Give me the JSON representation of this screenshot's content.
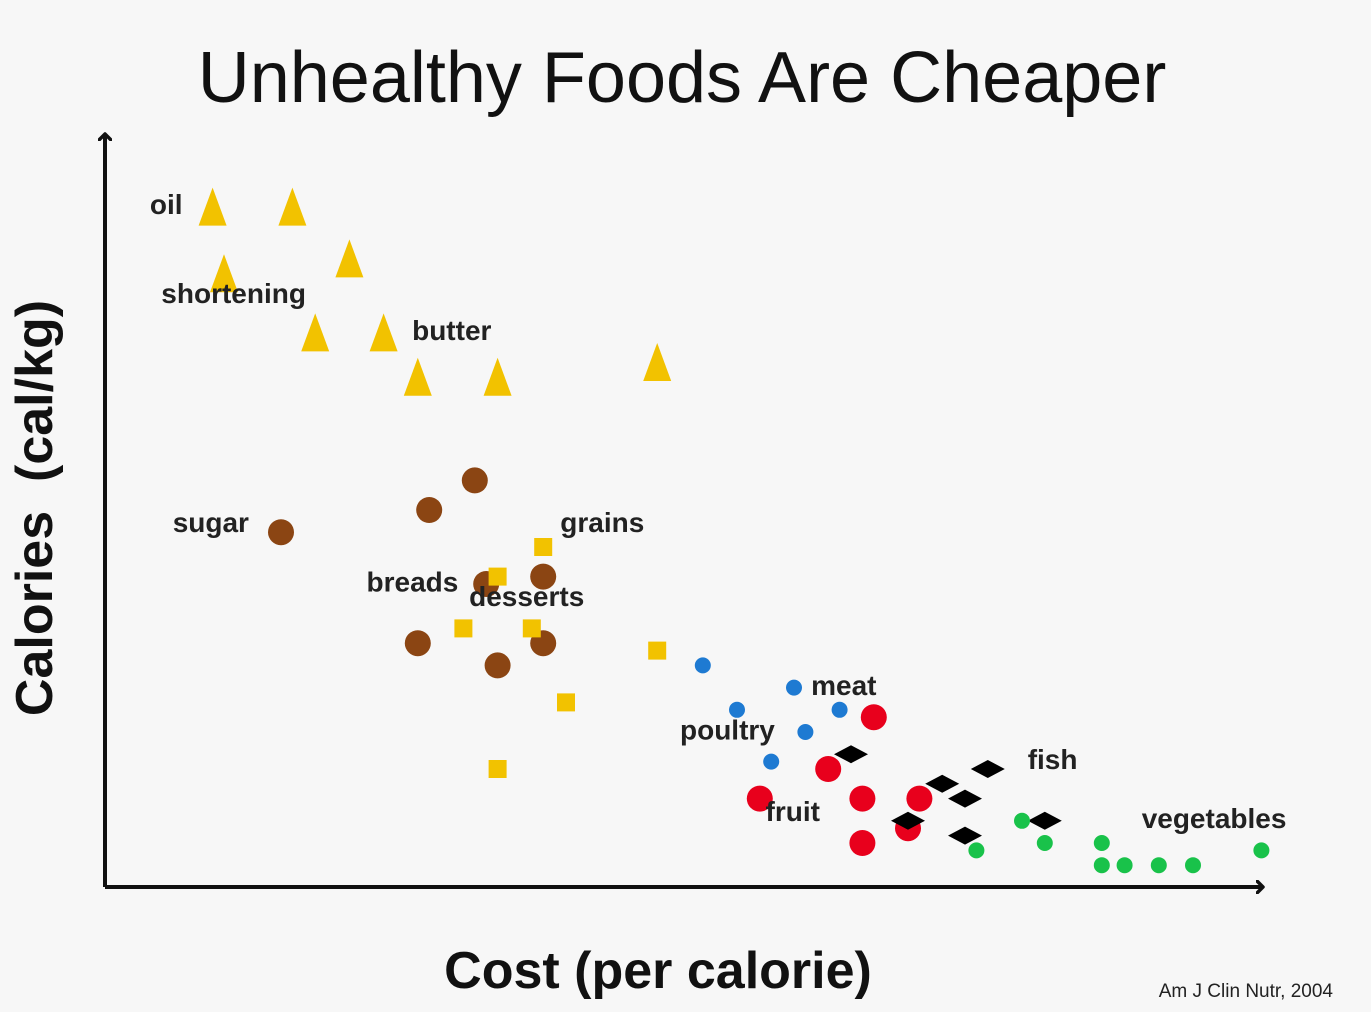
{
  "chart_data": {
    "type": "scatter",
    "title": "Unhealthy Foods Are Cheaper",
    "xlabel": "Cost (per calorie)",
    "ylabel": "Calories  (cal/kg)",
    "source": "Am J Clin Nutr, 2004",
    "xlim": [
      0,
      100
    ],
    "ylim": [
      0,
      100
    ],
    "grid": false,
    "series": [
      {
        "marker": "triangle",
        "color": "#f2c200",
        "points": [
          [
            9,
            91
          ],
          [
            16,
            91
          ],
          [
            10,
            82
          ],
          [
            21,
            84
          ],
          [
            18,
            74
          ],
          [
            24,
            74
          ],
          [
            27,
            68
          ],
          [
            34,
            68
          ],
          [
            48,
            70
          ]
        ]
      },
      {
        "marker": "circle",
        "color": "#8b4513",
        "points": [
          [
            15,
            47
          ],
          [
            28,
            50
          ],
          [
            32,
            54
          ],
          [
            33,
            40
          ],
          [
            38,
            41
          ],
          [
            27,
            32
          ],
          [
            34,
            29
          ],
          [
            38,
            32
          ]
        ]
      },
      {
        "marker": "square",
        "color": "#f2c200",
        "points": [
          [
            38,
            45
          ],
          [
            34,
            41
          ],
          [
            31,
            34
          ],
          [
            37,
            34
          ],
          [
            48,
            31
          ],
          [
            40,
            24
          ],
          [
            34,
            15
          ]
        ]
      },
      {
        "marker": "circle-small",
        "color": "#1e7ad2",
        "points": [
          [
            52,
            29
          ],
          [
            60,
            26
          ],
          [
            55,
            23
          ],
          [
            61,
            20
          ],
          [
            58,
            16
          ],
          [
            64,
            23
          ]
        ]
      },
      {
        "marker": "circle",
        "color": "#e8001c",
        "points": [
          [
            67,
            22
          ],
          [
            63,
            15
          ],
          [
            57,
            11
          ],
          [
            66,
            11
          ],
          [
            71,
            11
          ],
          [
            70,
            7
          ],
          [
            66,
            5
          ]
        ]
      },
      {
        "marker": "diamond",
        "color": "#000000",
        "points": [
          [
            65,
            17
          ],
          [
            73,
            13
          ],
          [
            75,
            11
          ],
          [
            77,
            15
          ],
          [
            70,
            8
          ],
          [
            82,
            8
          ],
          [
            75,
            6
          ]
        ]
      },
      {
        "marker": "circle-small",
        "color": "#19c24a",
        "points": [
          [
            80,
            8
          ],
          [
            82,
            5
          ],
          [
            76,
            4
          ],
          [
            87,
            5
          ],
          [
            87,
            2
          ],
          [
            89,
            2
          ],
          [
            92,
            2
          ],
          [
            95,
            2
          ],
          [
            101,
            4
          ]
        ]
      }
    ],
    "annotations": [
      {
        "text": "oil",
        "x": 3.5,
        "y": 90
      },
      {
        "text": "shortening",
        "x": 4.5,
        "y": 78
      },
      {
        "text": "butter",
        "x": 26.5,
        "y": 73
      },
      {
        "text": "sugar",
        "x": 5.5,
        "y": 47
      },
      {
        "text": "grains",
        "x": 39.5,
        "y": 47
      },
      {
        "text": "breads",
        "x": 22.5,
        "y": 39
      },
      {
        "text": "desserts",
        "x": 31.5,
        "y": 37
      },
      {
        "text": "meat",
        "x": 61.5,
        "y": 25
      },
      {
        "text": "poultry",
        "x": 50,
        "y": 19
      },
      {
        "text": "fish",
        "x": 80.5,
        "y": 15
      },
      {
        "text": "fruit",
        "x": 57.5,
        "y": 8
      },
      {
        "text": "vegetables",
        "x": 90.5,
        "y": 7
      }
    ]
  }
}
